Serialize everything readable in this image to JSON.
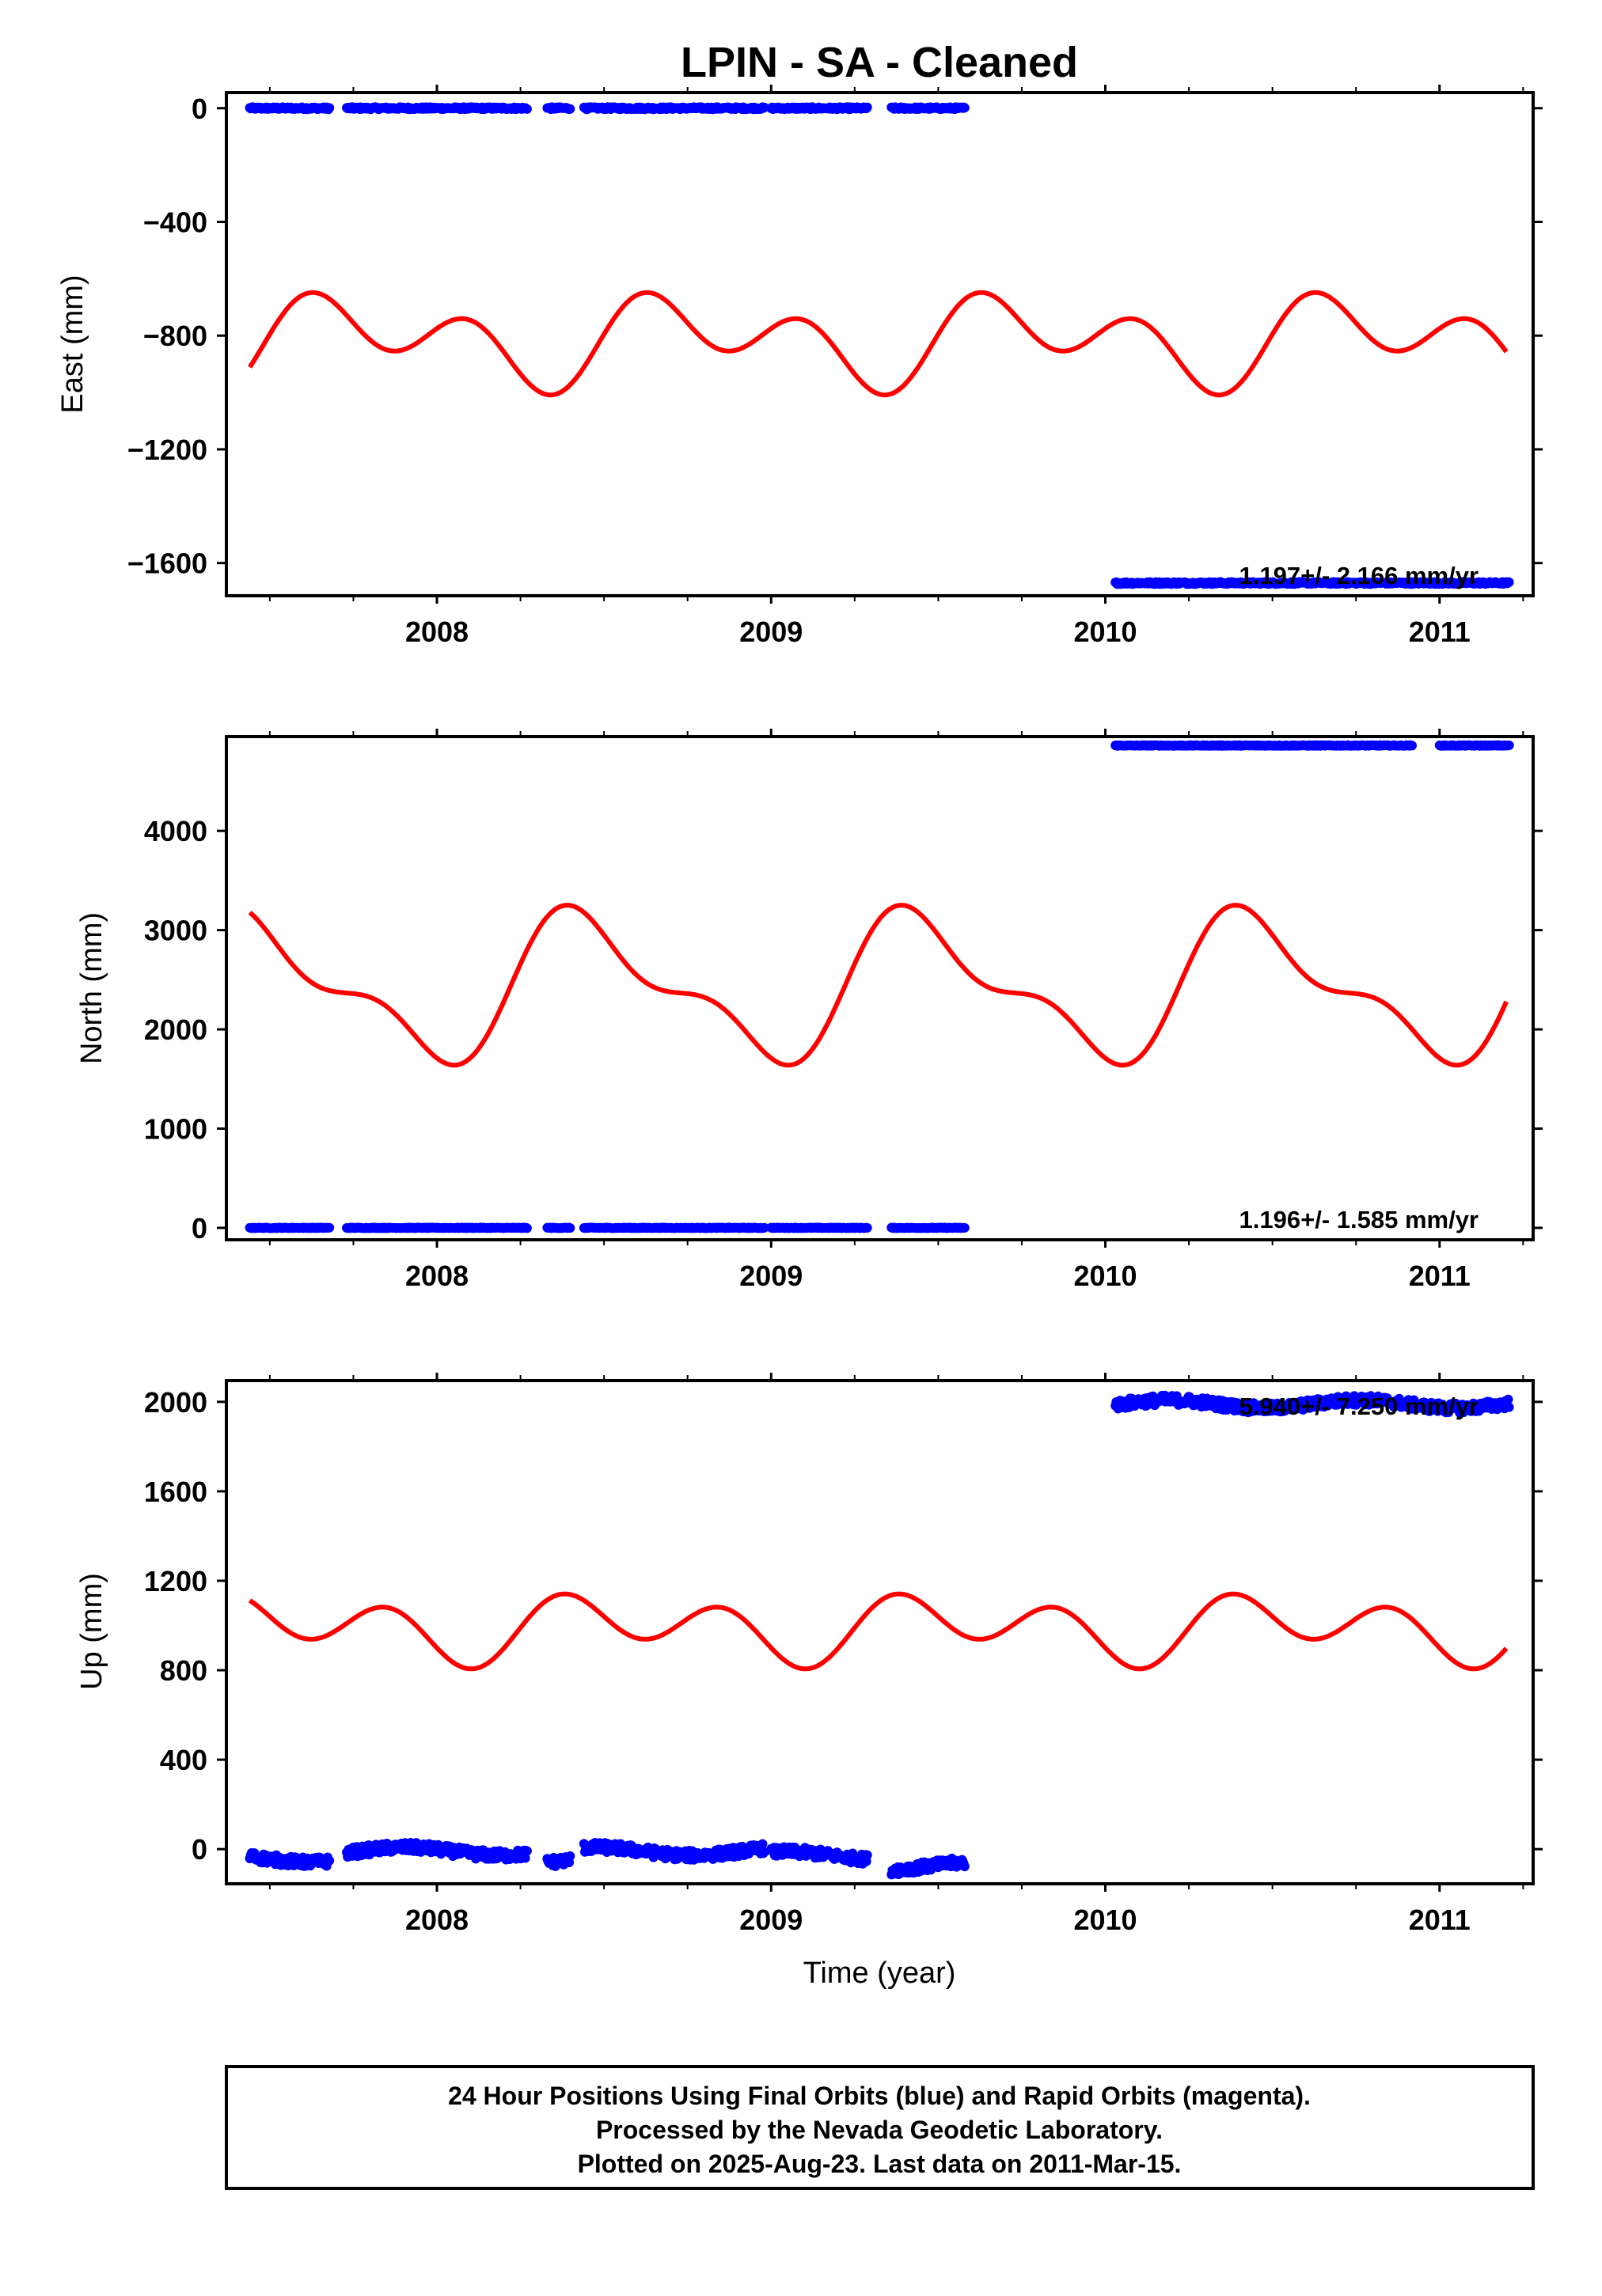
{
  "title": "LPIN  - SA - Cleaned",
  "xlabel": "Time (year)",
  "footer": {
    "line1": "24 Hour Positions Using Final Orbits (blue) and Rapid Orbits (magenta).",
    "line2": "Processed by the Nevada Geodetic Laboratory.",
    "line3": "Plotted on 2025-Aug-23. Last data on 2011-Mar-15."
  },
  "colors": {
    "final_orbits": "#0000ff",
    "model_fit": "#ff0000",
    "frame": "#000000"
  },
  "chart_data": [
    {
      "type": "scatter",
      "name": "east",
      "ylabel": "East (mm)",
      "xlim": [
        2007.37,
        2011.28
      ],
      "ylim": [
        -1715,
        55
      ],
      "xticks": [
        2008,
        2009,
        2010,
        2011
      ],
      "yticks": [
        0,
        -400,
        -800,
        -1200,
        -1600
      ],
      "rate_label": "1.197+/- 2.166 mm/yr",
      "grid": false,
      "points": [
        {
          "x0": 2007.44,
          "x1": 2007.68,
          "y": 0
        },
        {
          "x0": 2007.73,
          "x1": 2008.27,
          "y": 0
        },
        {
          "x0": 2008.33,
          "x1": 2008.4,
          "y": 0
        },
        {
          "x0": 2008.44,
          "x1": 2008.98,
          "y": 0
        },
        {
          "x0": 2009.0,
          "x1": 2009.29,
          "y": 0
        },
        {
          "x0": 2009.36,
          "x1": 2009.58,
          "y": 0
        },
        {
          "x0": 2010.03,
          "x1": 2011.21,
          "y": -1670
        }
      ],
      "seasonal_model": {
        "x0": 2007.44,
        "x1": 2011.2,
        "mean": -815,
        "annual": [
          -90,
          10
        ],
        "semiannual": [
          110,
          30
        ]
      }
    },
    {
      "type": "scatter",
      "name": "north",
      "ylabel": "North (mm)",
      "xlim": [
        2007.37,
        2011.28
      ],
      "ylim": [
        -120,
        4950
      ],
      "xticks": [
        2008,
        2009,
        2010,
        2011
      ],
      "yticks": [
        0,
        1000,
        2000,
        3000,
        4000
      ],
      "rate_label": "1.196+/- 1.585 mm/yr",
      "grid": false,
      "points": [
        {
          "x0": 2007.44,
          "x1": 2007.68,
          "y": 0
        },
        {
          "x0": 2007.73,
          "x1": 2008.27,
          "y": 0
        },
        {
          "x0": 2008.33,
          "x1": 2008.4,
          "y": 0
        },
        {
          "x0": 2008.44,
          "x1": 2008.98,
          "y": 0
        },
        {
          "x0": 2009.0,
          "x1": 2009.29,
          "y": 0
        },
        {
          "x0": 2009.36,
          "x1": 2009.58,
          "y": 0
        },
        {
          "x0": 2010.03,
          "x1": 2010.92,
          "y": 4860
        },
        {
          "x0": 2011.0,
          "x1": 2011.21,
          "y": 4860
        }
      ],
      "seasonal_model": {
        "x0": 2007.44,
        "x1": 2011.2,
        "mean": 2420,
        "annual": [
          150,
          -620
        ],
        "semiannual": [
          -280,
          -90
        ]
      }
    },
    {
      "type": "scatter",
      "name": "up",
      "ylabel": "Up (mm)",
      "xlim": [
        2007.37,
        2011.28
      ],
      "ylim": [
        -155,
        2095
      ],
      "xticks": [
        2008,
        2009,
        2010,
        2011
      ],
      "yticks": [
        0,
        400,
        800,
        1200,
        1600,
        2000
      ],
      "rate_label": "5.940+/- 7.250 mm/yr",
      "grid": false,
      "points": [
        {
          "x0": 2007.44,
          "x1": 2007.68,
          "y": -40
        },
        {
          "x0": 2007.73,
          "x1": 2008.27,
          "y": -10
        },
        {
          "x0": 2008.33,
          "x1": 2008.4,
          "y": -60
        },
        {
          "x0": 2008.44,
          "x1": 2008.98,
          "y": -10
        },
        {
          "x0": 2009.0,
          "x1": 2009.29,
          "y": -30
        },
        {
          "x0": 2009.36,
          "x1": 2009.58,
          "y": -75
        },
        {
          "x0": 2010.03,
          "x1": 2011.21,
          "y": 1990
        }
      ],
      "seasonal_model": {
        "x0": 2007.44,
        "x1": 2011.2,
        "mean": 990,
        "annual": [
          -20,
          -70
        ],
        "semiannual": [
          -115,
          -20
        ]
      }
    }
  ]
}
